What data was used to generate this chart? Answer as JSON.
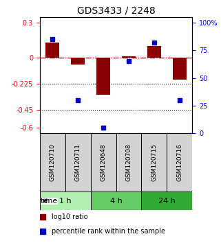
{
  "title": "GDS3433 / 2248",
  "samples": [
    "GSM120710",
    "GSM120711",
    "GSM120648",
    "GSM120708",
    "GSM120715",
    "GSM120716"
  ],
  "log10_ratio": [
    0.13,
    -0.06,
    -0.32,
    0.01,
    0.1,
    -0.19
  ],
  "percentile_rank": [
    85,
    30,
    5,
    65,
    82,
    30
  ],
  "bar_color": "#8B0000",
  "dot_color": "#0000CD",
  "ylim_left": [
    -0.65,
    0.35
  ],
  "ylim_right": [
    0,
    105
  ],
  "yticks_left": [
    0.3,
    0,
    -0.225,
    -0.45,
    -0.6
  ],
  "ytick_labels_left": [
    "0.3",
    "0",
    "-0.225",
    "-0.45",
    "-0.6"
  ],
  "yticks_right": [
    100,
    75,
    50,
    25,
    0
  ],
  "ytick_labels_right": [
    "100%",
    "75",
    "50",
    "25",
    "0"
  ],
  "hlines": [
    -0.225,
    -0.45
  ],
  "zero_line": 0.0,
  "time_groups": [
    {
      "label": "1 h",
      "start": 0,
      "end": 2,
      "color": "#b2f0b2"
    },
    {
      "label": "4 h",
      "start": 2,
      "end": 4,
      "color": "#66cc66"
    },
    {
      "label": "24 h",
      "start": 4,
      "end": 6,
      "color": "#33aa33"
    }
  ],
  "legend_bar_label": "log10 ratio",
  "legend_dot_label": "percentile rank within the sample",
  "time_label": "time",
  "bar_width": 0.55
}
